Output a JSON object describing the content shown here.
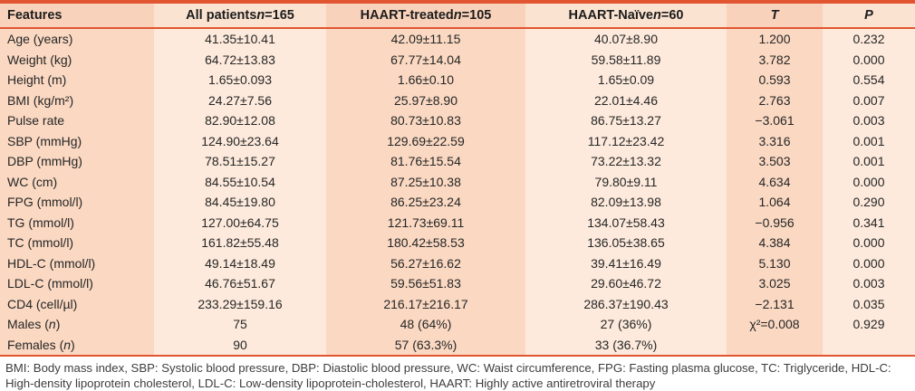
{
  "table": {
    "header": {
      "features": "Features",
      "all_patients": {
        "prefix": "All patients ",
        "italic": "n",
        "suffix": "=165"
      },
      "haart_treated": {
        "prefix": "HAART-treated ",
        "italic": "n",
        "suffix": "=105"
      },
      "haart_naive": {
        "prefix": "HAART-Naïve ",
        "italic": "n",
        "suffix": "=60"
      },
      "t": "T",
      "p": "P"
    },
    "rows": [
      [
        "Age (years)",
        "41.35±10.41",
        "42.09±11.15",
        "40.07±8.90",
        "1.200",
        "0.232"
      ],
      [
        "Weight (kg)",
        "64.72±13.83",
        "67.77±14.04",
        "59.58±11.89",
        "3.782",
        "0.000"
      ],
      [
        "Height (m)",
        "1.65±0.093",
        "1.66±0.10",
        "1.65±0.09",
        "0.593",
        "0.554"
      ],
      [
        "BMI (kg/m²)",
        "24.27±7.56",
        "25.97±8.90",
        "22.01±4.46",
        "2.763",
        "0.007"
      ],
      [
        "Pulse rate",
        "82.90±12.08",
        "80.73±10.83",
        "86.75±13.27",
        "−3.061",
        "0.003"
      ],
      [
        "SBP (mmHg)",
        "124.90±23.64",
        "129.69±22.59",
        "117.12±23.42",
        "3.316",
        "0.001"
      ],
      [
        "DBP (mmHg)",
        "78.51±15.27",
        "81.76±15.54",
        "73.22±13.32",
        "3.503",
        "0.001"
      ],
      [
        "WC (cm)",
        "84.55±10.54",
        "87.25±10.38",
        "79.80±9.11",
        "4.634",
        "0.000"
      ],
      [
        "FPG (mmol/l)",
        "84.45±19.80",
        "86.25±23.24",
        "82.09±13.98",
        "1.064",
        "0.290"
      ],
      [
        "TG (mmol/l)",
        "127.00±64.75",
        "121.73±69.11",
        "134.07±58.43",
        "−0.956",
        "0.341"
      ],
      [
        "TC (mmol/l)",
        "161.82±55.48",
        "180.42±58.53",
        "136.05±38.65",
        "4.384",
        "0.000"
      ],
      [
        "HDL-C (mmol/l)",
        "49.14±18.49",
        "56.27±16.62",
        "39.41±16.49",
        "5.130",
        "0.000"
      ],
      [
        "LDL-C (mmol/l)",
        "46.76±51.67",
        "59.56±51.83",
        "29.60±46.72",
        "3.025",
        "0.003"
      ],
      [
        "CD4 (cell/µl)",
        "233.29±159.16",
        "216.17±216.17",
        "286.37±190.43",
        "−2.131",
        "0.035"
      ],
      [
        "Males (n)",
        "75",
        "48 (64%)",
        "27 (36%)",
        "χ²=0.008",
        "0.929"
      ],
      [
        "Females (n)",
        "90",
        "57 (63.3%)",
        "33 (36.7%)",
        "",
        ""
      ]
    ],
    "footnote": "BMI: Body mass index, SBP: Systolic blood pressure, DBP: Diastolic blood pressure, WC: Waist circumference, FPG: Fasting plasma glucose, TC: Triglyceride, HDL-C: High-density lipoprotein cholesterol, LDL-C: Low-density lipoprotein-cholesterol, HAART: Highly active antiretroviral therapy"
  },
  "colors": {
    "accent_rule": "#e15531",
    "band_dark": "#fad8c2",
    "band_light": "#fdeadc",
    "header_band_dark": "#f9d2bb",
    "header_band_light": "#fbe3d1"
  }
}
